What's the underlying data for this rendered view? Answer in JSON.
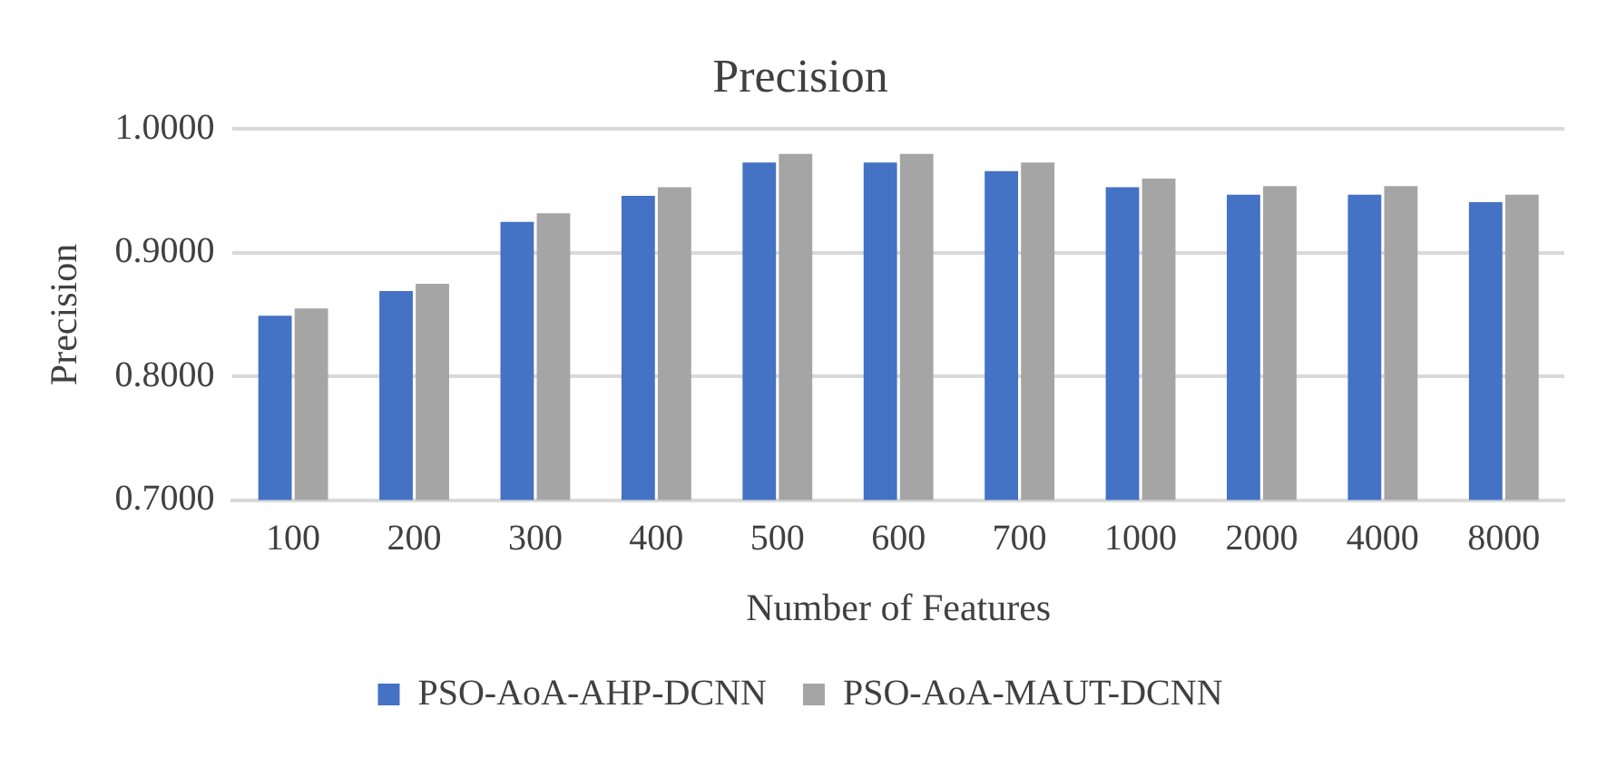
{
  "chart_data": {
    "type": "bar",
    "title": "Precision",
    "xlabel": "Number of Features",
    "ylabel": "Precision",
    "categories": [
      "100",
      "200",
      "300",
      "400",
      "500",
      "600",
      "700",
      "1000",
      "2000",
      "4000",
      "8000"
    ],
    "series": [
      {
        "name": "PSO-AoA-AHP-DCNN",
        "color": "#4472c4",
        "values": [
          0.849,
          0.869,
          0.925,
          0.946,
          0.973,
          0.973,
          0.966,
          0.953,
          0.947,
          0.947,
          0.941
        ]
      },
      {
        "name": "PSO-AoA-MAUT-DCNN",
        "color": "#a5a5a5",
        "values": [
          0.855,
          0.875,
          0.932,
          0.953,
          0.98,
          0.98,
          0.973,
          0.96,
          0.954,
          0.954,
          0.947
        ]
      }
    ],
    "ylim": [
      0.7,
      1.0
    ],
    "yticks": [
      {
        "value": 0.7,
        "label": "0.7000"
      },
      {
        "value": 0.8,
        "label": "0.8000"
      },
      {
        "value": 0.9,
        "label": "0.9000"
      },
      {
        "value": 1.0,
        "label": "1.0000"
      }
    ],
    "grid": "y",
    "legend": "bottom"
  }
}
